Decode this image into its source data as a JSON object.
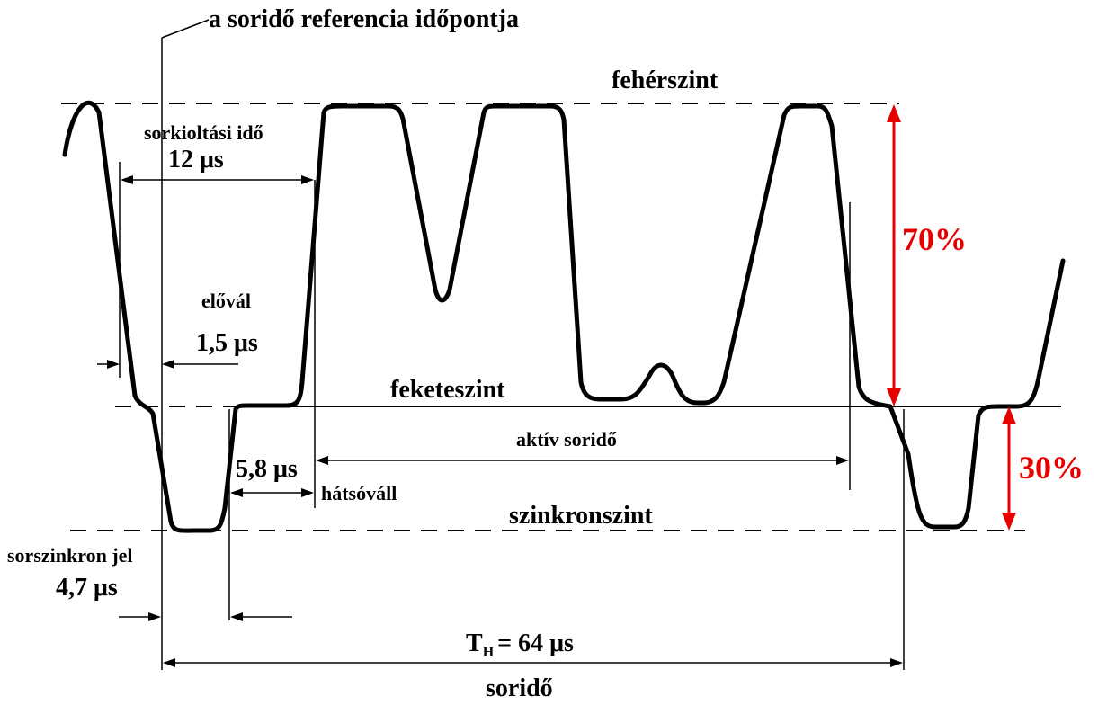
{
  "diagram": {
    "labels": {
      "reference": "a soridő referencia időpontja",
      "white_level": "fehérszint",
      "black_level": "feketeszint",
      "sync_level": "szinkronszint",
      "blanking_title": "sorkioltási idő",
      "blanking_value": "12 μs",
      "front_porch_title": "elővál",
      "front_porch_value": "1,5 μs",
      "back_porch_value": "5,8 μs",
      "back_porch_title": "hátsóváll",
      "active_line": "aktív soridő",
      "sync_pulse_title": "sorszinkron jel",
      "sync_pulse_value": "4,7 μs",
      "period_prefix": "T",
      "period_sub": "H",
      "period_value": "= 64 μs",
      "line_time": "soridő",
      "pct_70": "70%",
      "pct_30": "30%"
    },
    "colors": {
      "line": "#000000",
      "accent": "#e60000",
      "background": "#ffffff"
    }
  }
}
